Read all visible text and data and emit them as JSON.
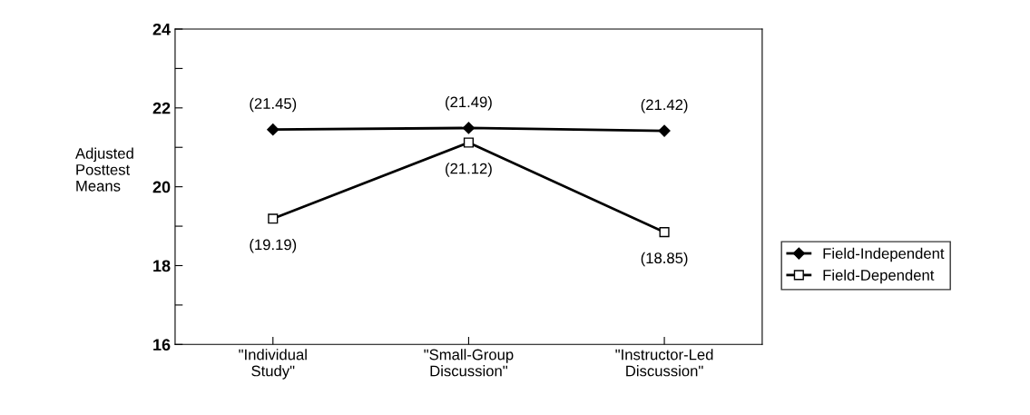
{
  "chart_data": {
    "type": "line",
    "ylabel": "Adjusted\nPosttest\nMeans",
    "categories": [
      "\"Individual\nStudy\"",
      "\"Small-Group\nDiscussion\"",
      "\"Instructor-Led\nDiscussion\""
    ],
    "series": [
      {
        "name": "Field-Independent",
        "color": "#000000",
        "marker": "diamond",
        "values": [
          21.45,
          21.49,
          21.42
        ],
        "value_labels": [
          "(21.45)",
          "(21.49)",
          "(21.42)"
        ]
      },
      {
        "name": "Field-Dependent",
        "color": "#000000",
        "marker": "square",
        "values": [
          19.19,
          21.12,
          18.85
        ],
        "value_labels": [
          "(19.19)",
          "(21.12)",
          "(18.85)"
        ]
      }
    ],
    "ylim": [
      16,
      24
    ],
    "yticks": [
      16,
      {
        "value": 17,
        "label": null
      },
      18,
      {
        "value": 19,
        "label": null
      },
      20,
      {
        "value": 21,
        "label": null
      },
      22,
      {
        "value": 23,
        "label": null
      },
      24
    ],
    "grid": false,
    "legend": "right",
    "line_style": "solid"
  }
}
